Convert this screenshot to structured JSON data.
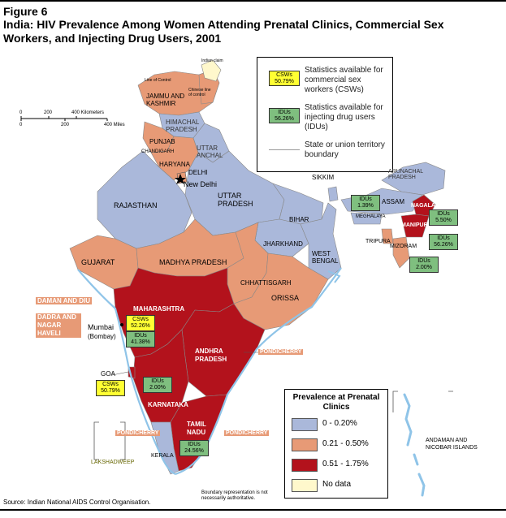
{
  "header": {
    "figure_label": "Figure 6",
    "title": "India: HIV Prevalence Among Women Attending Prenatal Clinics, Commercial Sex Workers, and Injecting Drug Users, 2001"
  },
  "source_note": "Source: Indian National AIDS Control Organisation.",
  "boundary_note": "Boundary representation is not necessarily authoritative.",
  "scale": {
    "km_ticks": [
      "0",
      "200",
      "400 Kilometers"
    ],
    "mi_ticks": [
      "0",
      "200",
      "400 Miles"
    ]
  },
  "symbol_legend": {
    "csw_chip": "CSWs\n50.79%",
    "csw_text": "Statistics available for commercial sex workers (CSWs)",
    "idu_chip": "IDUs\n56.26%",
    "idu_text": "Statistics available for injecting drug users (IDUs)",
    "boundary_text": "State or union territory boundary"
  },
  "prevalence_legend": {
    "title": "Prevalence at Prenatal Clinics",
    "items": [
      {
        "label": "0 - 0.20%",
        "color": "#aab8da"
      },
      {
        "label": "0.21 - 0.50%",
        "color": "#e79a76"
      },
      {
        "label": "0.51 - 1.75%",
        "color": "#b3121c"
      },
      {
        "label": "No data",
        "color": "#fff8cc"
      }
    ]
  },
  "stat_boxes": {
    "mumbai_csw": "CSWs\n52.26%",
    "mumbai_idu": "IDUs\n41.38%",
    "goa_csw": "CSWs\n50.79%",
    "karnataka_idu": "IDUs\n2.00%",
    "tamil_idu": "IDUs\n24.56%",
    "meghalaya_idu": "IDUs\n1.39%",
    "nagaland_idu": "IDUs\n5.50%",
    "manipur_idu": "IDUs\n56.26%",
    "mizoram_idu": "IDUs\n2.00%"
  },
  "place_labels": {
    "indian_claim": "Indian claim",
    "line_of_control": "Line of Control",
    "chinese_line": "Chinese line of control",
    "jammu_kashmir": "JAMMU AND KASHMIR",
    "himachal": "HIMACHAL PRADESH",
    "punjab": "PUNJAB",
    "chandigarh": "CHANDIGARH",
    "uttaranchal": "UTTAR ANCHAL",
    "haryana": "HARYANA",
    "delhi": "DELHI",
    "new_delhi": "New Delhi",
    "rajasthan": "RAJASTHAN",
    "uttar_pradesh": "UTTAR PRADESH",
    "bihar": "BIHAR",
    "jharkhand": "JHARKHAND",
    "west_bengal": "WEST BENGAL",
    "sikkim": "SIKKIM",
    "arunachal": "ARUNACHAL PRADESH",
    "assam": "ASSAM",
    "meghalaya": "MEGHALAYA",
    "nagaland": "NAGALAND",
    "manipur": "MANIPUR",
    "tripura": "TRIPURA",
    "mizoram": "MIZORAM",
    "gujarat": "GUJARAT",
    "madhya_pradesh": "MADHYA PRADESH",
    "chhattisgarh": "CHHATTISGARH",
    "orissa": "ORISSA",
    "daman_diu": "DAMAN AND DIU",
    "dadra": "DADRA AND NAGAR HAVELI",
    "maharashtra": "MAHARASHTRA",
    "mumbai": "Mumbai",
    "bombay": "(Bombay)",
    "andhra": "ANDHRA PRADESH",
    "pondicherry": "PONDICHERRY",
    "goa": "GOA",
    "karnataka": "KARNATAKA",
    "tamil_nadu": "TAMIL NADU",
    "kerala": "KERALA",
    "lakshadweep": "LAKSHADWEEP",
    "andaman": "ANDAMAN AND NICOBAR ISLANDS"
  },
  "colors": {
    "low": "#aab8da",
    "mid": "#e79a76",
    "high": "#b3121c",
    "nodata": "#fff8cc",
    "csw_chip": "#ffff33",
    "idu_chip": "#7fbf7f",
    "water": "#8fc4e8"
  }
}
